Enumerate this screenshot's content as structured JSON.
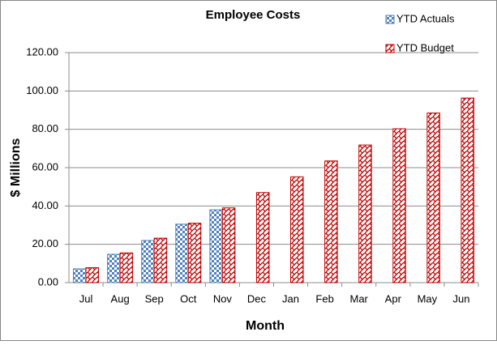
{
  "chart_data": {
    "type": "bar",
    "title": "Employee Costs",
    "x_label": "Month",
    "y_label": "$ Millions",
    "categories": [
      "Jul",
      "Aug",
      "Sep",
      "Oct",
      "Nov",
      "Dec",
      "Jan",
      "Feb",
      "Mar",
      "Apr",
      "May",
      "Jun"
    ],
    "series": [
      {
        "name": "YTD Actuals",
        "color": "#4f81bd",
        "values": [
          7.2,
          14.8,
          22.0,
          30.5,
          38.0,
          null,
          null,
          null,
          null,
          null,
          null,
          null
        ]
      },
      {
        "name": "YTD Budget",
        "color": "#c00000",
        "values": [
          7.8,
          15.5,
          23.2,
          31.0,
          39.0,
          47.0,
          55.2,
          63.5,
          71.8,
          80.3,
          88.5,
          96.3
        ]
      }
    ],
    "ylim": [
      0,
      120
    ],
    "yticks": [
      {
        "value": 0,
        "label": "0.00"
      },
      {
        "value": 20,
        "label": "20.00"
      },
      {
        "value": 40,
        "label": "40.00"
      },
      {
        "value": 60,
        "label": "60.00"
      },
      {
        "value": 80,
        "label": "80.00"
      },
      {
        "value": 100,
        "label": "100.00"
      },
      {
        "value": 120,
        "label": "120.00"
      }
    ],
    "grid": true,
    "legend": "top-right"
  }
}
